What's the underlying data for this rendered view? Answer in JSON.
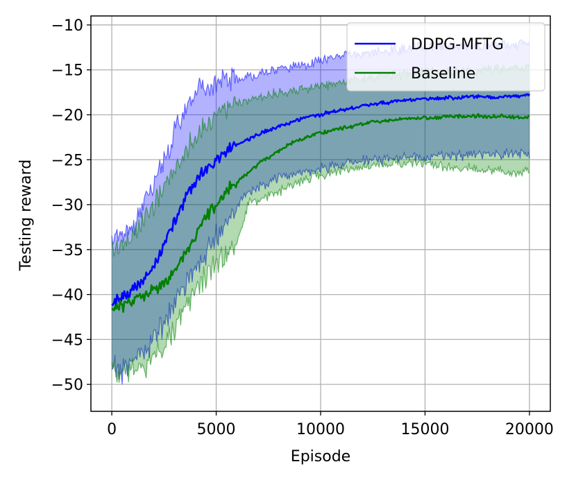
{
  "chart_data": {
    "type": "line",
    "title": "",
    "xlabel": "Episode",
    "ylabel": "Testing reward",
    "xlim": [
      -1000,
      21000
    ],
    "ylim": [
      -53,
      -9
    ],
    "xticks": [
      0,
      5000,
      10000,
      15000,
      20000
    ],
    "xtick_labels": [
      "0",
      "5000",
      "10000",
      "15000",
      "20000"
    ],
    "yticks": [
      -10,
      -15,
      -20,
      -25,
      -30,
      -35,
      -40,
      -45,
      -50
    ],
    "ytick_labels": [
      "−10",
      "−15",
      "−20",
      "−25",
      "−30",
      "−35",
      "−40",
      "−45",
      "−50"
    ],
    "grid": true,
    "legend_position": "upper right",
    "series": [
      {
        "name": "DDPG-MFTG",
        "color": "#0000ff",
        "x": [
          0,
          500,
          1000,
          1500,
          2000,
          2500,
          3000,
          3500,
          4000,
          4500,
          5000,
          5500,
          6000,
          6500,
          7000,
          7500,
          8000,
          8500,
          9000,
          9500,
          10000,
          10500,
          11000,
          11500,
          12000,
          12500,
          13000,
          13500,
          14000,
          14500,
          15000,
          15500,
          16000,
          16500,
          17000,
          17500,
          18000,
          18500,
          19000,
          19500,
          20000
        ],
        "mean": [
          -40.8,
          -40.5,
          -39.5,
          -38.5,
          -37.0,
          -34.5,
          -32.0,
          -29.5,
          -27.5,
          -26.0,
          -25.0,
          -24.0,
          -23.3,
          -22.8,
          -22.2,
          -21.7,
          -21.3,
          -20.9,
          -20.5,
          -20.2,
          -20.0,
          -19.7,
          -19.5,
          -19.3,
          -19.0,
          -18.8,
          -18.7,
          -18.5,
          -18.4,
          -18.3,
          -18.2,
          -18.2,
          -18.1,
          -18.1,
          -18.0,
          -18.0,
          -18.0,
          -18.0,
          -17.9,
          -17.9,
          -17.8
        ],
        "upper": [
          -34.0,
          -33.5,
          -32.5,
          -30.0,
          -28.0,
          -25.0,
          -22.0,
          -19.5,
          -17.5,
          -16.8,
          -16.5,
          -16.2,
          -16.0,
          -15.8,
          -15.5,
          -15.3,
          -15.0,
          -14.8,
          -14.5,
          -14.3,
          -14.0,
          -13.8,
          -13.5,
          -13.3,
          -13.2,
          -13.0,
          -13.0,
          -12.8,
          -12.7,
          -12.6,
          -12.5,
          -12.5,
          -12.4,
          -12.4,
          -12.3,
          -12.3,
          -12.2,
          -12.2,
          -12.1,
          -12.1,
          -12.0
        ],
        "lower": [
          -48.0,
          -48.5,
          -47.5,
          -46.5,
          -45.0,
          -43.0,
          -41.0,
          -39.0,
          -37.0,
          -35.5,
          -33.5,
          -32.0,
          -30.0,
          -28.8,
          -28.0,
          -27.5,
          -27.0,
          -26.8,
          -26.5,
          -26.2,
          -26.0,
          -25.8,
          -25.5,
          -25.3,
          -25.1,
          -25.0,
          -24.9,
          -24.8,
          -24.7,
          -24.6,
          -24.6,
          -24.5,
          -24.5,
          -24.5,
          -24.4,
          -24.4,
          -24.4,
          -24.4,
          -24.3,
          -24.3,
          -24.3
        ]
      },
      {
        "name": "Baseline",
        "color": "#008000",
        "x": [
          0,
          500,
          1000,
          1500,
          2000,
          2500,
          3000,
          3500,
          4000,
          4500,
          5000,
          5500,
          6000,
          6500,
          7000,
          7500,
          8000,
          8500,
          9000,
          9500,
          10000,
          10500,
          11000,
          11500,
          12000,
          12500,
          13000,
          13500,
          14000,
          14500,
          15000,
          15500,
          16000,
          16500,
          17000,
          17500,
          18000,
          18500,
          19000,
          19500,
          20000
        ],
        "mean": [
          -41.5,
          -41.2,
          -40.8,
          -40.0,
          -39.5,
          -38.5,
          -37.5,
          -35.5,
          -33.5,
          -31.5,
          -30.0,
          -28.5,
          -27.5,
          -26.5,
          -25.5,
          -24.8,
          -24.0,
          -23.3,
          -22.8,
          -22.3,
          -22.0,
          -21.8,
          -21.5,
          -21.3,
          -21.0,
          -20.8,
          -20.7,
          -20.6,
          -20.5,
          -20.4,
          -20.3,
          -20.3,
          -20.2,
          -20.2,
          -20.2,
          -20.1,
          -20.2,
          -20.1,
          -20.2,
          -20.3,
          -20.3
        ],
        "upper": [
          -35.0,
          -34.5,
          -33.5,
          -32.0,
          -30.0,
          -28.0,
          -26.0,
          -24.0,
          -22.5,
          -21.0,
          -20.0,
          -19.3,
          -18.8,
          -18.4,
          -18.1,
          -17.8,
          -17.6,
          -17.4,
          -17.2,
          -17.0,
          -16.8,
          -16.6,
          -16.4,
          -16.2,
          -16.0,
          -15.8,
          -15.7,
          -15.6,
          -15.5,
          -15.4,
          -15.3,
          -15.3,
          -15.2,
          -15.2,
          -15.1,
          -15.1,
          -15.0,
          -15.0,
          -14.9,
          -14.9,
          -14.8
        ],
        "lower": [
          -48.5,
          -48.8,
          -48.5,
          -48.2,
          -47.0,
          -45.5,
          -44.0,
          -41.5,
          -39.5,
          -38.0,
          -36.5,
          -35.5,
          -34.5,
          -30.0,
          -29.5,
          -29.0,
          -28.5,
          -28.0,
          -27.5,
          -27.0,
          -26.7,
          -26.4,
          -26.1,
          -25.8,
          -25.7,
          -25.6,
          -25.5,
          -25.4,
          -25.4,
          -25.4,
          -25.3,
          -25.6,
          -25.8,
          -25.9,
          -26.0,
          -26.1,
          -26.2,
          -26.3,
          -26.3,
          -26.4,
          -26.4
        ]
      }
    ]
  }
}
